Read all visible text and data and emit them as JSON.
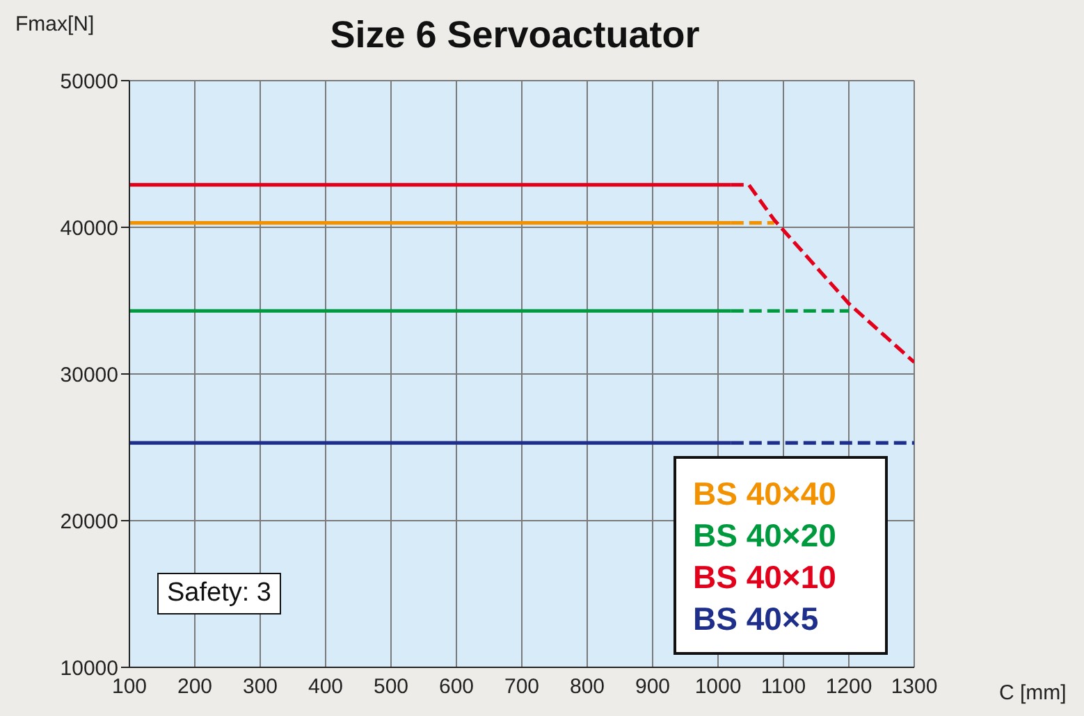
{
  "chart_data": {
    "type": "line",
    "title": "Size 6 Servoactuator",
    "xlabel": "C [mm]",
    "ylabel": "Fmax[N]",
    "annotations": [
      "Safety: 3"
    ],
    "xlim": [
      100,
      1300
    ],
    "xticks": [
      100,
      200,
      300,
      400,
      500,
      600,
      700,
      800,
      900,
      1000,
      1100,
      1200,
      1300
    ],
    "ylim": [
      10000,
      50000
    ],
    "yticks": [
      10000,
      20000,
      30000,
      40000,
      50000
    ],
    "grid": true,
    "legend": "bottom right",
    "marker": "none",
    "series": [
      {
        "name": "BS 40×40",
        "color": "#f39200",
        "line_style": "solid",
        "x": [
          100,
          1020
        ],
        "values": [
          40300,
          40300
        ]
      },
      {
        "name": "BS 40×20",
        "color": "#009a3e",
        "line_style": "solid",
        "x": [
          100,
          1020
        ],
        "values": [
          34300,
          34300
        ]
      },
      {
        "name": "BS 40×10",
        "color": "#e3001b",
        "line_style": "solid",
        "x": [
          100,
          1020
        ],
        "values": [
          42900,
          42900
        ]
      },
      {
        "name": "BS 40×5",
        "color": "#1d2f8a",
        "line_style": "solid",
        "x": [
          100,
          1020
        ],
        "values": [
          25300,
          25300
        ]
      },
      {
        "color": "#f39200",
        "line_style": "dashed",
        "x": [
          1020,
          1086
        ],
        "values": [
          40300,
          40300
        ]
      },
      {
        "color": "#009a3e",
        "line_style": "dashed",
        "x": [
          1020,
          1200
        ],
        "values": [
          34300,
          34300
        ]
      },
      {
        "color": "#e3001b",
        "line_style": "dashed",
        "x": [
          1020,
          1047,
          1086,
          1200,
          1300
        ],
        "values": [
          42900,
          42900,
          40500,
          34800,
          30800
        ]
      },
      {
        "color": "#1d2f8a",
        "line_style": "dashed",
        "x": [
          1020,
          1300
        ],
        "values": [
          25300,
          25300
        ]
      }
    ]
  }
}
